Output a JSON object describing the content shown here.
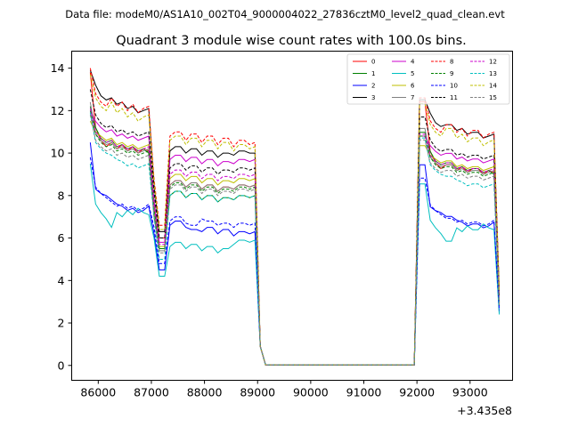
{
  "header_text": "Data file: modeM0/AS1A10_002T04_9000004022_27836cztM0_level2_quad_clean.evt",
  "chart_data": {
    "type": "line",
    "title": "Quadrant 3 module wise count rates with 100.0s bins.",
    "xlabel": "",
    "ylabel": "",
    "x_offset_text": "+3.435e8",
    "xlim": [
      85500,
      93800
    ],
    "ylim": [
      -0.7,
      14.8
    ],
    "x_ticks": [
      86000,
      87000,
      88000,
      89000,
      90000,
      91000,
      92000,
      93000
    ],
    "x_tick_labels": [
      "86000",
      "87000",
      "88000",
      "89000",
      "90000",
      "91000",
      "92000",
      "93000"
    ],
    "y_ticks": [
      0,
      2,
      4,
      6,
      8,
      10,
      12,
      14
    ],
    "y_tick_labels": [
      "0",
      "2",
      "4",
      "6",
      "8",
      "10",
      "12",
      "14"
    ],
    "legend_position": "top-right",
    "series": [
      {
        "name": "0",
        "color": "#ff0000",
        "dash": "solid",
        "values": [
          13.8,
          11.2,
          10.6,
          10.3,
          10.5,
          10.2,
          10.4,
          10.1,
          10.3,
          10.0,
          10.2,
          10.1,
          7.3,
          6.0,
          8.5,
          8.7,
          8.4,
          8.6,
          8.3,
          8.5,
          8.2,
          8.4,
          8.3,
          8.5,
          8.4,
          8.5
        ]
      },
      {
        "name": "1",
        "color": "#008000",
        "dash": "solid",
        "values": [
          12.2,
          11.2,
          10.7,
          10.5,
          10.6,
          10.3,
          10.4,
          10.2,
          10.3,
          10.1,
          10.2,
          10.0,
          7.0,
          5.5,
          8.0,
          8.2,
          7.9,
          8.1,
          7.8,
          8.0,
          7.7,
          7.9,
          7.8,
          8.0,
          7.9,
          8.0
        ]
      },
      {
        "name": "2",
        "color": "#0000ff",
        "dash": "solid",
        "values": [
          10.5,
          8.3,
          8.1,
          8.0,
          7.8,
          7.6,
          7.5,
          7.3,
          7.4,
          7.2,
          7.3,
          7.5,
          6.2,
          4.5,
          6.6,
          6.8,
          6.5,
          6.4,
          6.3,
          6.5,
          6.2,
          6.4,
          6.1,
          6.3,
          6.2,
          6.3
        ]
      },
      {
        "name": "3",
        "color": "#000000",
        "dash": "solid",
        "values": [
          13.9,
          13.2,
          12.7,
          12.5,
          12.6,
          12.3,
          12.4,
          12.1,
          12.2,
          11.9,
          12.0,
          12.1,
          8.5,
          6.3,
          10.1,
          10.3,
          10.0,
          10.2,
          9.9,
          10.1,
          9.8,
          10.0,
          9.9,
          10.1,
          10.0,
          10.0
        ]
      },
      {
        "name": "4",
        "color": "#cc00cc",
        "dash": "solid",
        "values": [
          12.0,
          11.5,
          11.2,
          11.0,
          11.1,
          10.8,
          10.9,
          10.7,
          10.8,
          10.6,
          10.7,
          10.8,
          7.8,
          5.8,
          9.7,
          9.9,
          9.6,
          9.8,
          9.5,
          9.7,
          9.4,
          9.6,
          9.5,
          9.7,
          9.6,
          9.7
        ]
      },
      {
        "name": "5",
        "color": "#00bfbf",
        "dash": "solid",
        "values": [
          9.5,
          7.6,
          7.2,
          6.9,
          6.5,
          7.2,
          7.0,
          7.3,
          7.1,
          7.4,
          7.2,
          7.1,
          6.0,
          4.2,
          5.6,
          5.8,
          5.5,
          5.7,
          5.4,
          5.6,
          5.3,
          5.5,
          5.7,
          5.9,
          5.8,
          5.9
        ]
      },
      {
        "name": "6",
        "color": "#bfbf00",
        "dash": "solid",
        "values": [
          11.5,
          11.0,
          10.8,
          10.6,
          10.7,
          10.4,
          10.5,
          10.3,
          10.4,
          10.2,
          10.3,
          10.4,
          7.5,
          5.6,
          8.8,
          9.0,
          8.7,
          8.9,
          8.6,
          8.8,
          8.5,
          8.7,
          8.6,
          8.8,
          8.7,
          8.8
        ]
      },
      {
        "name": "7",
        "color": "#808080",
        "dash": "solid",
        "values": [
          12.4,
          10.9,
          10.6,
          10.4,
          10.5,
          10.2,
          10.3,
          10.1,
          10.2,
          10.0,
          10.1,
          10.2,
          7.2,
          5.4,
          8.5,
          8.7,
          8.4,
          8.6,
          8.3,
          8.5,
          8.2,
          8.4,
          8.3,
          8.5,
          8.4,
          8.5
        ]
      },
      {
        "name": "8",
        "color": "#ff0000",
        "dash": "dashed",
        "values": [
          14.0,
          12.8,
          12.4,
          12.2,
          12.6,
          12.2,
          12.4,
          12.0,
          12.3,
          11.9,
          12.1,
          12.2,
          8.8,
          6.6,
          10.8,
          11.0,
          10.6,
          10.9,
          10.5,
          10.8,
          10.4,
          10.7,
          10.3,
          10.6,
          10.4,
          10.5
        ]
      },
      {
        "name": "9",
        "color": "#008000",
        "dash": "dashed",
        "values": [
          12.0,
          10.9,
          10.5,
          10.3,
          10.4,
          10.1,
          10.2,
          10.0,
          10.1,
          9.9,
          10.0,
          10.1,
          7.4,
          5.5,
          8.4,
          8.6,
          8.3,
          8.5,
          8.2,
          8.4,
          8.1,
          8.3,
          8.2,
          8.4,
          8.3,
          8.4
        ]
      },
      {
        "name": "10",
        "color": "#0000ff",
        "dash": "dashed",
        "values": [
          9.8,
          8.4,
          8.1,
          7.9,
          7.7,
          7.5,
          7.6,
          7.4,
          7.5,
          7.3,
          7.4,
          7.6,
          6.5,
          4.8,
          6.8,
          7.0,
          6.7,
          6.6,
          6.9,
          6.8,
          6.6,
          6.7,
          6.5,
          6.7,
          6.6,
          6.7
        ]
      },
      {
        "name": "11",
        "color": "#000000",
        "dash": "dashed",
        "values": [
          13.0,
          11.8,
          11.4,
          11.2,
          11.3,
          11.0,
          11.1,
          10.9,
          11.0,
          10.8,
          10.9,
          11.0,
          8.2,
          6.0,
          9.3,
          9.5,
          9.2,
          9.4,
          9.1,
          9.3,
          9.0,
          9.2,
          9.1,
          9.3,
          9.2,
          9.3
        ]
      },
      {
        "name": "12",
        "color": "#cc00cc",
        "dash": "dashed",
        "values": [
          12.1,
          11.0,
          10.7,
          10.5,
          10.6,
          10.3,
          10.4,
          10.2,
          10.3,
          10.1,
          10.2,
          10.3,
          7.6,
          5.7,
          9.0,
          9.2,
          8.9,
          9.1,
          8.8,
          9.0,
          8.7,
          8.9,
          8.8,
          9.0,
          8.9,
          9.0
        ]
      },
      {
        "name": "13",
        "color": "#00bfbf",
        "dash": "dashed",
        "values": [
          11.9,
          10.5,
          10.2,
          10.0,
          9.9,
          9.7,
          9.6,
          9.4,
          9.5,
          9.3,
          9.4,
          9.5,
          7.0,
          5.0,
          8.0,
          8.2,
          7.9,
          8.1,
          7.8,
          8.0,
          7.7,
          7.9,
          7.8,
          8.0,
          7.9,
          8.0
        ]
      },
      {
        "name": "14",
        "color": "#bfbf00",
        "dash": "dashed",
        "values": [
          13.7,
          12.6,
          12.2,
          12.0,
          12.4,
          11.9,
          12.1,
          11.7,
          11.9,
          11.5,
          11.7,
          11.8,
          8.6,
          6.4,
          10.6,
          10.8,
          10.4,
          10.7,
          10.3,
          10.6,
          10.2,
          10.5,
          10.1,
          10.4,
          10.2,
          10.3
        ]
      },
      {
        "name": "15",
        "color": "#808080",
        "dash": "dashed",
        "values": [
          11.8,
          10.6,
          10.3,
          10.1,
          10.2,
          9.9,
          10.0,
          9.8,
          9.9,
          9.7,
          9.8,
          9.9,
          7.1,
          5.3,
          8.3,
          8.5,
          8.2,
          8.4,
          8.1,
          8.3,
          8.0,
          8.2,
          8.1,
          8.3,
          8.2,
          8.3
        ]
      }
    ]
  }
}
